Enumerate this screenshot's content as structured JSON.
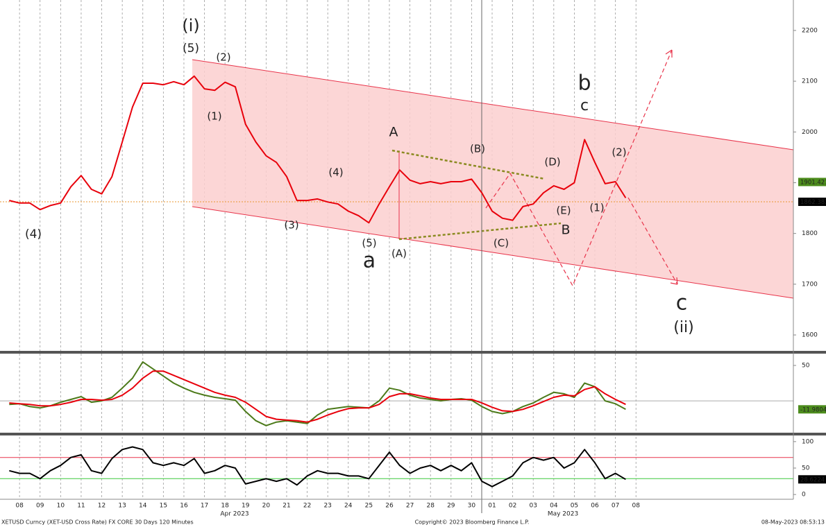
{
  "chart_data": [
    {
      "type": "line",
      "color": "#e8000b",
      "x": [
        -0.5,
        0,
        0.5,
        1,
        1.5,
        2,
        2.5,
        3,
        3.5,
        4,
        4.5,
        5,
        5.5,
        6,
        6.5,
        7,
        7.5,
        8,
        8.5,
        9,
        9.5,
        10,
        10.5,
        11,
        11.5,
        12,
        12.5,
        13,
        13.5,
        14,
        14.5,
        15,
        15.5,
        16,
        16.5,
        17,
        17.5,
        18,
        18.5,
        19,
        19.5,
        20,
        20.5,
        21,
        21.5,
        22,
        22.5,
        23,
        23.5,
        24,
        24.5,
        25,
        25.5,
        26,
        26.5,
        27,
        27.5,
        28,
        28.5,
        29,
        29.5
      ],
      "values": [
        1865,
        1860,
        1860,
        1847,
        1855,
        1860,
        1892,
        1914,
        1887,
        1878,
        1912,
        1980,
        2049,
        2096,
        2096,
        2093,
        2099,
        2093,
        2110,
        2085,
        2082,
        2098,
        2089,
        2015,
        1980,
        1953,
        1940,
        1912,
        1865,
        1865,
        1868,
        1862,
        1858,
        1844,
        1835,
        1821,
        1858,
        1892,
        1925,
        1905,
        1898,
        1902,
        1898,
        1902,
        1902,
        1907,
        1880,
        1844,
        1830,
        1826,
        1853,
        1858,
        1880,
        1894,
        1887,
        1900,
        1985,
        1940,
        1898,
        1902,
        1870
      ],
      "xlim": [
        -0.95,
        37.66
      ],
      "ylim": [
        1570,
        2260
      ],
      "yticks": [
        1600,
        1700,
        1800,
        1900,
        2000,
        2100,
        2200
      ],
      "xticks": [
        {
          "value": 0,
          "label": "08"
        },
        {
          "value": 1,
          "label": "09"
        },
        {
          "value": 2,
          "label": "10"
        },
        {
          "value": 3,
          "label": "11"
        },
        {
          "value": 4,
          "label": "12"
        },
        {
          "value": 5,
          "label": "13"
        },
        {
          "value": 6,
          "label": "14"
        },
        {
          "value": 7,
          "label": "15"
        },
        {
          "value": 8,
          "label": "16"
        },
        {
          "value": 9,
          "label": "17"
        },
        {
          "value": 10,
          "label": "18"
        },
        {
          "value": 11,
          "label": "19"
        },
        {
          "value": 12,
          "label": "20"
        },
        {
          "value": 13,
          "label": "21"
        },
        {
          "value": 14,
          "label": "22"
        },
        {
          "value": 15,
          "label": "23"
        },
        {
          "value": 16,
          "label": "24"
        },
        {
          "value": 17,
          "label": "25"
        },
        {
          "value": 18,
          "label": "26"
        },
        {
          "value": 19,
          "label": "27"
        },
        {
          "value": 20,
          "label": "28"
        },
        {
          "value": 21,
          "label": "29"
        },
        {
          "value": 22,
          "label": "30"
        },
        {
          "value": 23,
          "label": "01"
        },
        {
          "value": 24,
          "label": "02"
        },
        {
          "value": 25,
          "label": "03"
        },
        {
          "value": 26,
          "label": "04"
        },
        {
          "value": 27,
          "label": "05"
        },
        {
          "value": 28,
          "label": "06"
        },
        {
          "value": 29,
          "label": "07"
        },
        {
          "value": 30,
          "label": "08"
        }
      ],
      "reference_lines": [
        {
          "value": 1862.383,
          "color": "#e8962e"
        }
      ],
      "flags": [
        {
          "value": 1901.421,
          "color": "#4c8c1c"
        },
        {
          "value": 1862.383,
          "color": "#000000"
        }
      ],
      "annotations": [
        {
          "text": "(i)",
          "color": "#3d9be0"
        },
        {
          "text": "(5)",
          "color": "#e8334a"
        },
        {
          "text": "(2)",
          "color": "#444444"
        },
        {
          "text": "(1)",
          "color": "#444444"
        },
        {
          "text": "(3)",
          "color": "#444444"
        },
        {
          "text": "(4)",
          "color": "#444444"
        },
        {
          "text": "(5)",
          "color": "#444444"
        },
        {
          "text": "a",
          "color": "#4e8a12"
        },
        {
          "text": "(A)",
          "color": "#444444"
        },
        {
          "text": "A",
          "color": "#e8334a"
        },
        {
          "text": "(B)",
          "color": "#444444"
        },
        {
          "text": "(C)",
          "color": "#444444"
        },
        {
          "text": "(D)",
          "color": "#444444"
        },
        {
          "text": "(E)",
          "color": "#444444"
        },
        {
          "text": "B",
          "color": "#e8334a"
        },
        {
          "text": "b",
          "color": "#4e8a12"
        },
        {
          "text": "c",
          "color": "#e8334a"
        },
        {
          "text": "(2)",
          "color": "#444444"
        },
        {
          "text": "(1)",
          "color": "#444444"
        },
        {
          "text": "c",
          "color": "#4e8a12"
        },
        {
          "text": "(ii)",
          "color": "#3d9be0"
        },
        {
          "text": "(4)",
          "color": "#e8334a"
        }
      ]
    },
    {
      "type": "line",
      "series": [
        {
          "color": "#4c7a1a",
          "values": [
            -5,
            -4,
            -8,
            -10,
            -7,
            -2,
            2,
            6,
            -2,
            0,
            5,
            18,
            32,
            55,
            45,
            35,
            25,
            18,
            12,
            8,
            5,
            3,
            1,
            -15,
            -28,
            -35,
            -30,
            -28,
            -30,
            -32,
            -20,
            -12,
            -10,
            -8,
            -9,
            -10,
            0,
            18,
            15,
            8,
            4,
            2,
            0,
            2,
            3,
            1,
            -8,
            -15,
            -18,
            -15,
            -8,
            -3,
            5,
            12,
            10,
            5,
            25,
            20,
            0,
            -4,
            -12
          ]
        },
        {
          "color": "#e8000b",
          "values": [
            -3,
            -4,
            -5,
            -7,
            -7,
            -5,
            -2,
            2,
            2,
            1,
            2,
            8,
            18,
            32,
            42,
            42,
            36,
            30,
            24,
            18,
            12,
            8,
            5,
            -2,
            -12,
            -22,
            -26,
            -27,
            -28,
            -30,
            -26,
            -20,
            -15,
            -11,
            -10,
            -10,
            -5,
            6,
            10,
            10,
            7,
            4,
            2,
            2,
            2,
            2,
            -3,
            -9,
            -14,
            -15,
            -12,
            -7,
            -1,
            5,
            8,
            7,
            16,
            20,
            10,
            2,
            -5
          ]
        }
      ],
      "ylim": [
        -43,
        64.7
      ],
      "yticks": [
        50
      ],
      "reference_lines": [
        {
          "value": 0,
          "color": "#aaaaaa"
        }
      ],
      "flags": [
        {
          "value": -11.9804,
          "color": "#4c8c1c"
        }
      ]
    },
    {
      "type": "line",
      "color": "#000000",
      "values": [
        45,
        40,
        40,
        30,
        45,
        55,
        70,
        75,
        45,
        40,
        68,
        85,
        90,
        85,
        60,
        55,
        60,
        55,
        68,
        40,
        45,
        55,
        50,
        20,
        25,
        30,
        25,
        30,
        18,
        35,
        45,
        40,
        40,
        35,
        35,
        30,
        55,
        80,
        55,
        40,
        50,
        55,
        45,
        55,
        45,
        60,
        25,
        15,
        25,
        35,
        60,
        70,
        65,
        70,
        50,
        60,
        85,
        60,
        30,
        40,
        28.6224
      ],
      "ylim": [
        -9,
        109
      ],
      "yticks": [
        0,
        50,
        100
      ],
      "reference_lines": [
        {
          "value": 70,
          "color": "#e8334a"
        },
        {
          "value": 30,
          "color": "#3cc83c"
        }
      ],
      "flags": [
        {
          "value": 28.6224,
          "color": "#000000"
        }
      ]
    }
  ],
  "months": [
    "Apr 2023",
    "May 2023"
  ],
  "footer": {
    "left": "XETUSD Curncy (XET-USD Cross Rate) FX CORE 30 Days 120 Minutes",
    "center": "Copyright© 2023 Bloomberg Finance L.P.",
    "right": "08-May-2023 08:53:13"
  }
}
